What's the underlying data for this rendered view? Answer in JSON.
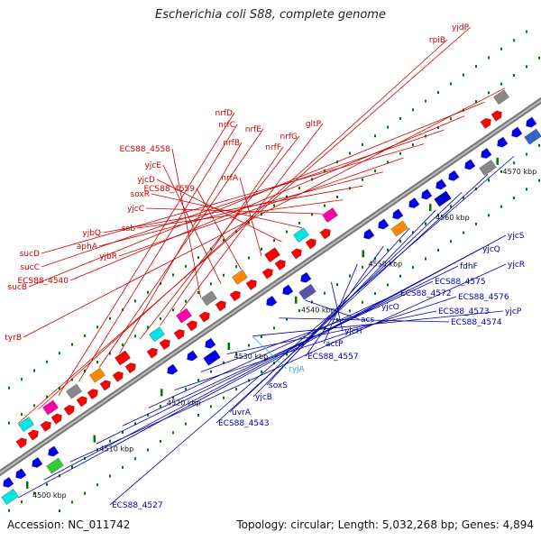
{
  "title": "Escherichia coli S88, complete genome",
  "footer": {
    "accession": "Accession: NC_011742",
    "summary": "Topology: circular; Length: 5,032,268 bp; Genes: 4,894"
  },
  "colors": {
    "backbone": "#888888",
    "forward_label": "#cc0000",
    "reverse_label": "#0000aa",
    "rna_label": "#33aadd",
    "forward_gene": "#ff0000",
    "reverse_gene": "#0000ee",
    "tick": "#007700"
  },
  "scale_ticks": [
    {
      "kbp": 4500,
      "label": "4500 kbp"
    },
    {
      "kbp": 4510,
      "label": "4510 kbp"
    },
    {
      "kbp": 4520,
      "label": "4520 kbp"
    },
    {
      "kbp": 4530,
      "label": "4530 kbp"
    },
    {
      "kbp": 4540,
      "label": "4540 kbp"
    },
    {
      "kbp": 4550,
      "label": "4550 kbp"
    },
    {
      "kbp": 4560,
      "label": "4560 kbp"
    },
    {
      "kbp": 4570,
      "label": "4570 kbp"
    }
  ],
  "forward_labels": [
    "yjdP",
    "rpiB",
    "nrfD",
    "nrfC",
    "nrfE",
    "nrfB",
    "nrfG",
    "nrfF",
    "gltP",
    "ECS88_4558",
    "yjcE",
    "ECS88_4559",
    "nrfA",
    "yjcD",
    "soxR",
    "yjcC",
    "ssb",
    "yjbQ",
    "aphA",
    "yjbR",
    "sucD",
    "sucC",
    "ECS88_4540",
    "sucB",
    "tyrB"
  ],
  "reverse_labels": [
    "yjcS",
    "yjcQ",
    "yjcR",
    "fdhF",
    "ECS88_4575",
    "ECS88_4572",
    "ECS88_4576",
    "yjcO",
    "ECS88_4573",
    "yjcP",
    "ECS88_4574",
    "acs",
    "yjcH",
    "actP",
    "ECS88_4557",
    "soxS",
    "yjcB",
    "uvrA",
    "ECS88_4543",
    "ECS88_4527"
  ],
  "rna_labels": [
    "ryjA"
  ]
}
